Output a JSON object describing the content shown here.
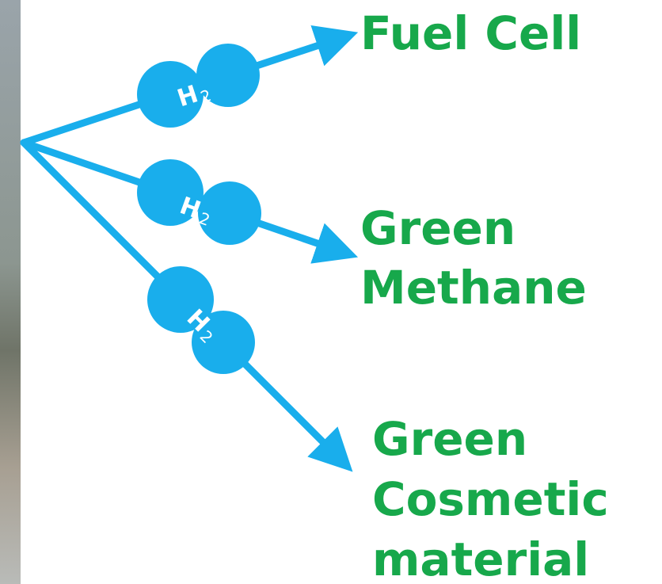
{
  "molecules": [
    {
      "element": "H",
      "subscript": "2"
    },
    {
      "element": "H",
      "subscript": "2"
    },
    {
      "element": "H",
      "subscript": "2"
    }
  ],
  "outputs": [
    {
      "lines": [
        "Fuel Cell"
      ]
    },
    {
      "lines": [
        "Green",
        "Methane"
      ]
    },
    {
      "lines": [
        "Green",
        "Cosmetic",
        "material"
      ]
    }
  ]
}
